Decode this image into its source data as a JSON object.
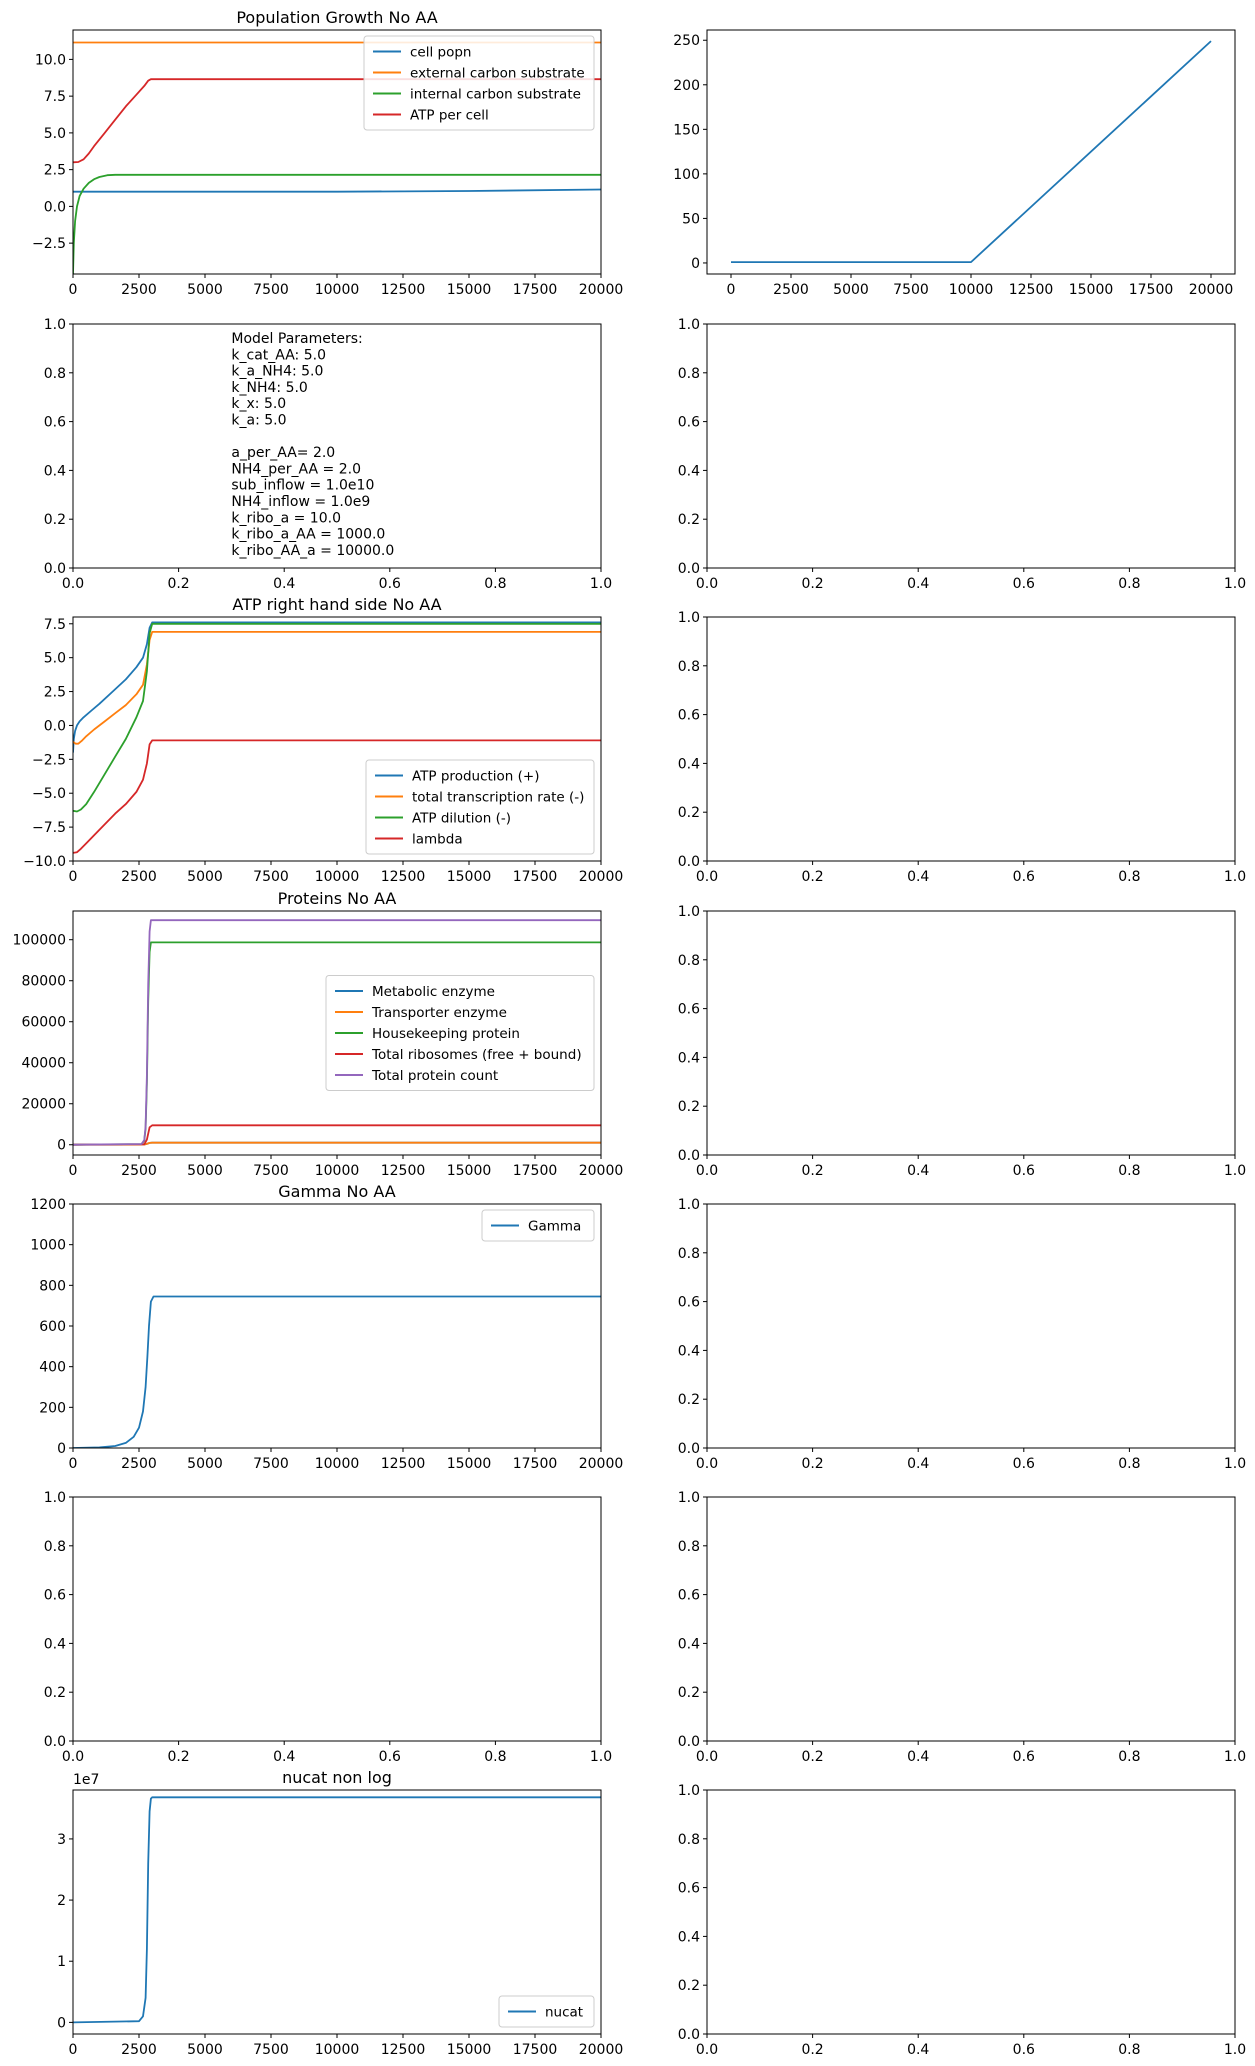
{
  "chart_data": [
    {
      "id": "p0",
      "type": "line",
      "title": "Population Growth No AA",
      "xlim": [
        0,
        20000
      ],
      "ylim": [
        -4.6,
        12
      ],
      "xticks": [
        0,
        2500,
        5000,
        7500,
        10000,
        12500,
        15000,
        17500,
        20000
      ],
      "xtick_labels": [
        "0",
        "2500",
        "5000",
        "7500",
        "10000",
        "12500",
        "15000",
        "17500",
        "20000"
      ],
      "yticks": [
        -2.5,
        0,
        2.5,
        5,
        7.5,
        10
      ],
      "ytick_labels": [
        "−2.5",
        "0.0",
        "2.5",
        "5.0",
        "7.5",
        "10.0"
      ],
      "legend": "upper right",
      "series": [
        {
          "name": "cell popn",
          "color": "#1f77b4",
          "x": [
            0,
            10000,
            15000,
            20000
          ],
          "y": [
            1.0,
            1.0,
            1.05,
            1.15
          ]
        },
        {
          "name": "external carbon substrate",
          "color": "#ff7f0e",
          "x": [
            0,
            20000
          ],
          "y": [
            11.15,
            11.15
          ]
        },
        {
          "name": "internal carbon substrate",
          "color": "#2ca02c",
          "x": [
            0,
            30,
            80,
            150,
            250,
            400,
            600,
            800,
            1000,
            1300,
            1600,
            20000
          ],
          "y": [
            -4.6,
            -2.5,
            -1.0,
            0.0,
            0.7,
            1.2,
            1.6,
            1.85,
            2.0,
            2.12,
            2.15,
            2.15
          ]
        },
        {
          "name": "ATP per cell",
          "color": "#d62728",
          "x": [
            0,
            200,
            400,
            600,
            800,
            1200,
            1600,
            2000,
            2400,
            2700,
            2850,
            2950,
            20000
          ],
          "y": [
            3.0,
            3.02,
            3.2,
            3.6,
            4.1,
            5.0,
            5.9,
            6.8,
            7.6,
            8.2,
            8.55,
            8.65,
            8.65
          ]
        }
      ]
    },
    {
      "id": "p1",
      "type": "line",
      "xlim": [
        -1000,
        21000
      ],
      "ylim": [
        -12.4,
        261.5
      ],
      "xticks": [
        0,
        2500,
        5000,
        7500,
        10000,
        12500,
        15000,
        17500,
        20000
      ],
      "xtick_labels": [
        "0",
        "2500",
        "5000",
        "7500",
        "10000",
        "12500",
        "15000",
        "17500",
        "20000"
      ],
      "yticks": [
        0,
        50,
        100,
        150,
        200,
        250
      ],
      "ytick_labels": [
        "0",
        "50",
        "100",
        "150",
        "200",
        "250"
      ],
      "series": [
        {
          "color": "#1f77b4",
          "x": [
            0,
            10000,
            20000
          ],
          "y": [
            1,
            1,
            249
          ]
        }
      ]
    },
    {
      "id": "p2",
      "type": "text",
      "xlim": [
        0,
        1
      ],
      "ylim": [
        0,
        1
      ],
      "xticks": [
        0,
        0.2,
        0.4,
        0.6,
        0.8,
        1.0
      ],
      "xtick_labels": [
        "0.0",
        "0.2",
        "0.4",
        "0.6",
        "0.8",
        "1.0"
      ],
      "yticks": [
        0,
        0.2,
        0.4,
        0.6,
        0.8,
        1.0
      ],
      "ytick_labels": [
        "0.0",
        "0.2",
        "0.4",
        "0.6",
        "0.8",
        "1.0"
      ],
      "text_lines": [
        "Model Parameters:",
        "k_cat_AA: 5.0",
        "k_a_NH4: 5.0",
        "k_NH4: 5.0",
        "k_x: 5.0",
        "k_a: 5.0",
        "",
        "a_per_AA= 2.0",
        "NH4_per_AA = 2.0",
        "sub_inflow = 1.0e10",
        "NH4_inflow = 1.0e9",
        "k_ribo_a = 10.0",
        "k_ribo_a_AA = 1000.0",
        "k_ribo_AA_a = 10000.0"
      ]
    },
    {
      "id": "p3",
      "type": "empty",
      "xlim": [
        0,
        1
      ],
      "ylim": [
        0,
        1
      ],
      "xticks": [
        0,
        0.2,
        0.4,
        0.6,
        0.8,
        1.0
      ],
      "xtick_labels": [
        "0.0",
        "0.2",
        "0.4",
        "0.6",
        "0.8",
        "1.0"
      ],
      "yticks": [
        0,
        0.2,
        0.4,
        0.6,
        0.8,
        1.0
      ],
      "ytick_labels": [
        "0.0",
        "0.2",
        "0.4",
        "0.6",
        "0.8",
        "1.0"
      ]
    },
    {
      "id": "p4",
      "type": "line",
      "title": "ATP right hand side No AA",
      "xlim": [
        0,
        20000
      ],
      "ylim": [
        -10,
        8
      ],
      "xticks": [
        0,
        2500,
        5000,
        7500,
        10000,
        12500,
        15000,
        17500,
        20000
      ],
      "xtick_labels": [
        "0",
        "2500",
        "5000",
        "7500",
        "10000",
        "12500",
        "15000",
        "17500",
        "20000"
      ],
      "yticks": [
        -10,
        -7.5,
        -5,
        -2.5,
        0,
        2.5,
        5,
        7.5
      ],
      "ytick_labels": [
        "−10.0",
        "−7.5",
        "−5.0",
        "−2.5",
        "0.0",
        "2.5",
        "5.0",
        "7.5"
      ],
      "legend": "lower right",
      "series": [
        {
          "name": "ATP production (+)",
          "color": "#1f77b4",
          "x": [
            0,
            30,
            80,
            150,
            250,
            400,
            700,
            1000,
            1500,
            2000,
            2400,
            2650,
            2800,
            2900,
            3000,
            20000
          ],
          "y": [
            -2.0,
            -1.0,
            -0.4,
            0.0,
            0.3,
            0.6,
            1.1,
            1.6,
            2.5,
            3.4,
            4.3,
            5.0,
            6.0,
            7.2,
            7.6,
            7.6
          ]
        },
        {
          "name": "total transcription rate (-)",
          "color": "#ff7f0e",
          "x": [
            0,
            100,
            200,
            350,
            500,
            800,
            1200,
            1600,
            2000,
            2400,
            2650,
            2800,
            2900,
            3000,
            20000
          ],
          "y": [
            -1.2,
            -1.35,
            -1.35,
            -1.1,
            -0.8,
            -0.3,
            0.3,
            0.9,
            1.5,
            2.3,
            3.0,
            4.5,
            6.3,
            6.9,
            6.9
          ]
        },
        {
          "name": "ATP dilution (-)",
          "color": "#2ca02c",
          "x": [
            0,
            150,
            300,
            500,
            800,
            1200,
            1600,
            2000,
            2400,
            2650,
            2800,
            2900,
            3000,
            20000
          ],
          "y": [
            -6.3,
            -6.35,
            -6.2,
            -5.8,
            -4.9,
            -3.6,
            -2.3,
            -1.0,
            0.6,
            1.8,
            4.0,
            6.8,
            7.5,
            7.5
          ]
        },
        {
          "name": "lambda",
          "color": "#d62728",
          "x": [
            0,
            150,
            300,
            500,
            800,
            1200,
            1600,
            2000,
            2400,
            2650,
            2800,
            2900,
            3000,
            20000
          ],
          "y": [
            -9.4,
            -9.35,
            -9.1,
            -8.7,
            -8.1,
            -7.3,
            -6.5,
            -5.8,
            -4.9,
            -4.0,
            -2.8,
            -1.4,
            -1.1,
            -1.1
          ]
        }
      ]
    },
    {
      "id": "p5",
      "type": "empty",
      "xlim": [
        0,
        1
      ],
      "ylim": [
        0,
        1
      ],
      "xticks": [
        0,
        0.2,
        0.4,
        0.6,
        0.8,
        1.0
      ],
      "xtick_labels": [
        "0.0",
        "0.2",
        "0.4",
        "0.6",
        "0.8",
        "1.0"
      ],
      "yticks": [
        0,
        0.2,
        0.4,
        0.6,
        0.8,
        1.0
      ],
      "ytick_labels": [
        "0.0",
        "0.2",
        "0.4",
        "0.6",
        "0.8",
        "1.0"
      ]
    },
    {
      "id": "p6",
      "type": "line",
      "title": "Proteins No AA",
      "xlim": [
        0,
        20000
      ],
      "ylim": [
        -5000,
        114000
      ],
      "xticks": [
        0,
        2500,
        5000,
        7500,
        10000,
        12500,
        15000,
        17500,
        20000
      ],
      "xtick_labels": [
        "0",
        "2500",
        "5000",
        "7500",
        "10000",
        "12500",
        "15000",
        "17500",
        "20000"
      ],
      "yticks": [
        0,
        20000,
        40000,
        60000,
        80000,
        100000
      ],
      "ytick_labels": [
        "0",
        "20000",
        "40000",
        "60000",
        "80000",
        "100000"
      ],
      "legend": "center right",
      "series": [
        {
          "name": "Metabolic enzyme",
          "color": "#1f77b4",
          "x": [
            0,
            2700,
            2800,
            2900,
            3000,
            20000
          ],
          "y": [
            0,
            100,
            400,
            900,
            1000,
            1000
          ]
        },
        {
          "name": "Transporter enzyme",
          "color": "#ff7f0e",
          "x": [
            0,
            2700,
            2800,
            2900,
            3000,
            20000
          ],
          "y": [
            0,
            100,
            400,
            900,
            1000,
            1000
          ]
        },
        {
          "name": "Housekeeping protein",
          "color": "#2ca02c",
          "x": [
            0,
            2600,
            2700,
            2750,
            2800,
            2850,
            2900,
            2950,
            20000
          ],
          "y": [
            0,
            300,
            2000,
            8000,
            30000,
            70000,
            94000,
            98700,
            98700
          ]
        },
        {
          "name": "Total ribosomes (free + bound)",
          "color": "#d62728",
          "x": [
            0,
            2700,
            2800,
            2900,
            3000,
            20000
          ],
          "y": [
            0,
            200,
            2500,
            8500,
            9500,
            9500
          ]
        },
        {
          "name": "Total protein count",
          "color": "#9467bd",
          "x": [
            0,
            2600,
            2700,
            2750,
            2800,
            2850,
            2900,
            2950,
            20000
          ],
          "y": [
            0,
            350,
            2300,
            9000,
            34000,
            78000,
            104000,
            109500,
            109500
          ]
        }
      ]
    },
    {
      "id": "p7",
      "type": "empty",
      "xlim": [
        0,
        1
      ],
      "ylim": [
        0,
        1
      ],
      "xticks": [
        0,
        0.2,
        0.4,
        0.6,
        0.8,
        1.0
      ],
      "xtick_labels": [
        "0.0",
        "0.2",
        "0.4",
        "0.6",
        "0.8",
        "1.0"
      ],
      "yticks": [
        0,
        0.2,
        0.4,
        0.6,
        0.8,
        1.0
      ],
      "ytick_labels": [
        "0.0",
        "0.2",
        "0.4",
        "0.6",
        "0.8",
        "1.0"
      ]
    },
    {
      "id": "p8",
      "type": "line",
      "title": "Gamma No AA",
      "xlim": [
        0,
        20000
      ],
      "ylim": [
        0,
        1200
      ],
      "xticks": [
        0,
        2500,
        5000,
        7500,
        10000,
        12500,
        15000,
        17500,
        20000
      ],
      "xtick_labels": [
        "0",
        "2500",
        "5000",
        "7500",
        "10000",
        "12500",
        "15000",
        "17500",
        "20000"
      ],
      "yticks": [
        0,
        200,
        400,
        600,
        800,
        1000,
        1200
      ],
      "ytick_labels": [
        "0",
        "200",
        "400",
        "600",
        "800",
        "1000",
        "1200"
      ],
      "legend": "upper right",
      "series": [
        {
          "name": "Gamma",
          "color": "#1f77b4",
          "x": [
            0,
            1000,
            1600,
            2000,
            2300,
            2500,
            2650,
            2750,
            2820,
            2880,
            2950,
            3050,
            20000
          ],
          "y": [
            0,
            3,
            10,
            25,
            55,
            100,
            180,
            300,
            450,
            600,
            720,
            745,
            745
          ]
        }
      ]
    },
    {
      "id": "p9",
      "type": "empty",
      "xlim": [
        0,
        1
      ],
      "ylim": [
        0,
        1
      ],
      "xticks": [
        0,
        0.2,
        0.4,
        0.6,
        0.8,
        1.0
      ],
      "xtick_labels": [
        "0.0",
        "0.2",
        "0.4",
        "0.6",
        "0.8",
        "1.0"
      ],
      "yticks": [
        0,
        0.2,
        0.4,
        0.6,
        0.8,
        1.0
      ],
      "ytick_labels": [
        "0.0",
        "0.2",
        "0.4",
        "0.6",
        "0.8",
        "1.0"
      ]
    },
    {
      "id": "p10",
      "type": "empty",
      "xlim": [
        0,
        1
      ],
      "ylim": [
        0,
        1
      ],
      "xticks": [
        0,
        0.2,
        0.4,
        0.6,
        0.8,
        1.0
      ],
      "xtick_labels": [
        "0.0",
        "0.2",
        "0.4",
        "0.6",
        "0.8",
        "1.0"
      ],
      "yticks": [
        0,
        0.2,
        0.4,
        0.6,
        0.8,
        1.0
      ],
      "ytick_labels": [
        "0.0",
        "0.2",
        "0.4",
        "0.6",
        "0.8",
        "1.0"
      ]
    },
    {
      "id": "p11",
      "type": "empty",
      "xlim": [
        0,
        1
      ],
      "ylim": [
        0,
        1
      ],
      "xticks": [
        0,
        0.2,
        0.4,
        0.6,
        0.8,
        1.0
      ],
      "xtick_labels": [
        "0.0",
        "0.2",
        "0.4",
        "0.6",
        "0.8",
        "1.0"
      ],
      "yticks": [
        0,
        0.2,
        0.4,
        0.6,
        0.8,
        1.0
      ],
      "ytick_labels": [
        "0.0",
        "0.2",
        "0.4",
        "0.6",
        "0.8",
        "1.0"
      ]
    },
    {
      "id": "p12",
      "type": "line",
      "title": "nucat non log",
      "xlim": [
        0,
        20000
      ],
      "ylim": [
        -0.19,
        3.8
      ],
      "offset_label": "1e7",
      "xticks": [
        0,
        2500,
        5000,
        7500,
        10000,
        12500,
        15000,
        17500,
        20000
      ],
      "xtick_labels": [
        "0",
        "2500",
        "5000",
        "7500",
        "10000",
        "12500",
        "15000",
        "17500",
        "20000"
      ],
      "yticks": [
        0,
        1,
        2,
        3
      ],
      "ytick_labels": [
        "0",
        "1",
        "2",
        "3"
      ],
      "legend": "lower right",
      "series": [
        {
          "name": "nucat",
          "color": "#1f77b4",
          "x": [
            0,
            2500,
            2650,
            2750,
            2800,
            2850,
            2900,
            2950,
            3000,
            20000
          ],
          "y": [
            0,
            0.02,
            0.1,
            0.4,
            1.2,
            2.6,
            3.45,
            3.66,
            3.68,
            3.68
          ]
        }
      ]
    },
    {
      "id": "p13",
      "type": "empty",
      "xlim": [
        0,
        1
      ],
      "ylim": [
        0,
        1
      ],
      "xticks": [
        0,
        0.2,
        0.4,
        0.6,
        0.8,
        1.0
      ],
      "xtick_labels": [
        "0.0",
        "0.2",
        "0.4",
        "0.6",
        "0.8",
        "1.0"
      ],
      "yticks": [
        0,
        0.2,
        0.4,
        0.6,
        0.8,
        1.0
      ],
      "ytick_labels": [
        "0.0",
        "0.2",
        "0.4",
        "0.6",
        "0.8",
        "1.0"
      ]
    }
  ]
}
